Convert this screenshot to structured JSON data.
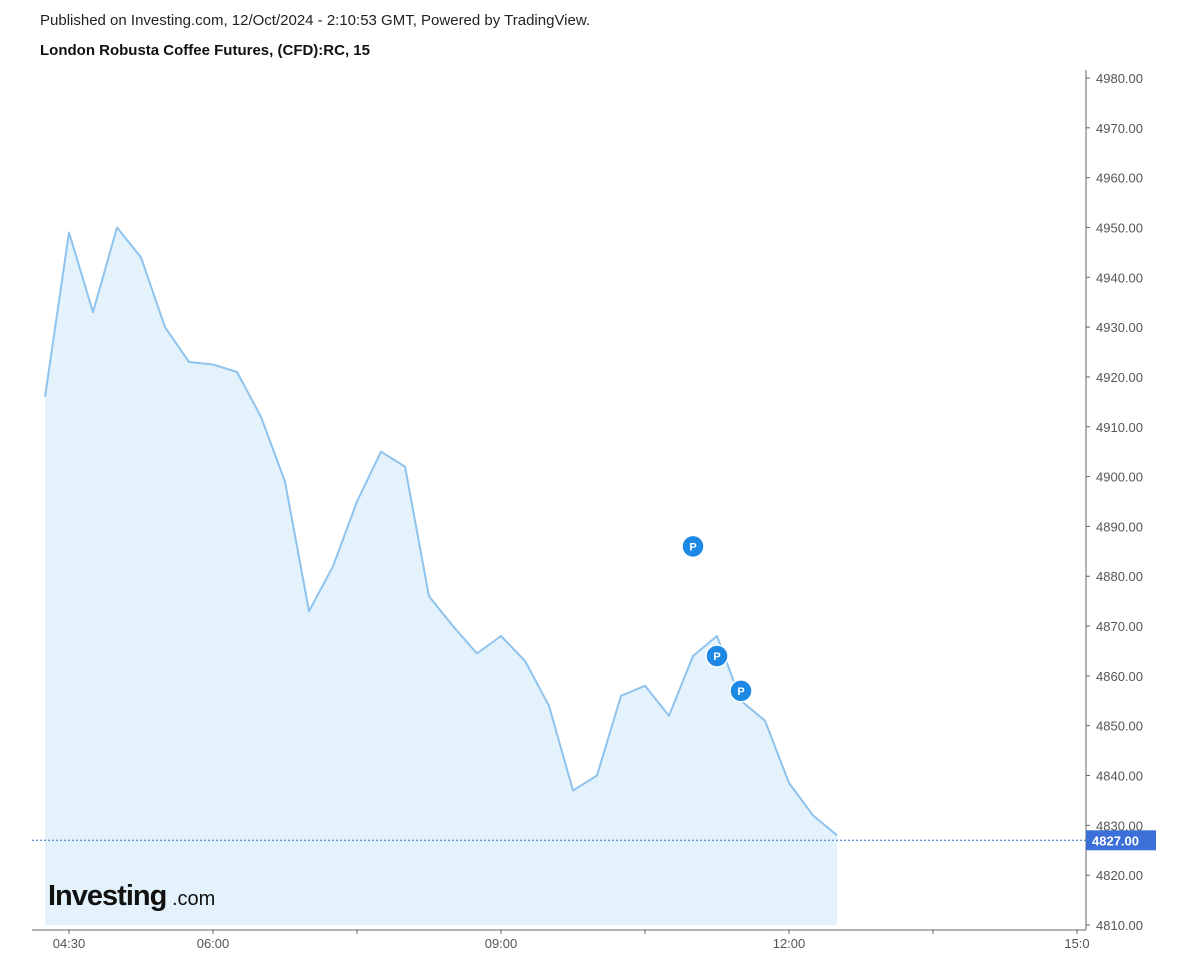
{
  "header": {
    "published": "Published on Investing.com, 12/Oct/2024 - 2:10:53 GMT, Powered by TradingView.",
    "symbol_title": "London Robusta Coffee Futures, (CFD):RC, 15"
  },
  "logo": {
    "brand": "Investing",
    "suffix": ".com"
  },
  "colors": {
    "line": "#8ec3ee",
    "fill": "#e3f2fb",
    "last_price_bg": "#3d6fd8",
    "marker": "#1e88e5",
    "axis": "#666666"
  },
  "chart_data": {
    "type": "area",
    "title": "London Robusta Coffee Futures, (CFD):RC, 15",
    "xlabel": "",
    "ylabel": "",
    "ylim": [
      4810,
      4980
    ],
    "xlim": [
      4.25,
      15.0
    ],
    "grid": false,
    "y_ticks": [
      "4980.00",
      "4970.00",
      "4960.00",
      "4950.00",
      "4940.00",
      "4930.00",
      "4920.00",
      "4910.00",
      "4900.00",
      "4890.00",
      "4880.00",
      "4870.00",
      "4860.00",
      "4850.00",
      "4840.00",
      "4830.00",
      "4820.00",
      "4810.00"
    ],
    "y_tick_values": [
      4980,
      4970,
      4960,
      4950,
      4940,
      4930,
      4920,
      4910,
      4900,
      4890,
      4880,
      4870,
      4860,
      4850,
      4840,
      4830,
      4820,
      4810
    ],
    "x_ticks": [
      {
        "label": "04:30",
        "value": 4.5
      },
      {
        "label": "06:00",
        "value": 6.0
      },
      {
        "label": "",
        "value": 7.5
      },
      {
        "label": "09:00",
        "value": 9.0
      },
      {
        "label": "",
        "value": 10.5
      },
      {
        "label": "12:00",
        "value": 12.0
      },
      {
        "label": "",
        "value": 13.5
      },
      {
        "label": "15:0",
        "value": 15.0
      }
    ],
    "series": [
      {
        "x": [
          4.25,
          4.5,
          4.75,
          5.0,
          5.25,
          5.5,
          5.75,
          6.0,
          6.25,
          6.5,
          6.75,
          7.0,
          7.25,
          7.5,
          7.75,
          8.0,
          8.25,
          8.5,
          8.75,
          9.0,
          9.25,
          9.5,
          9.75,
          10.0,
          10.25,
          10.5,
          10.75,
          11.0,
          11.25,
          11.5,
          11.75,
          12.0,
          12.25,
          12.5
        ],
        "values": [
          4916,
          4949,
          4933,
          4950,
          4944,
          4930,
          4923,
          4922.5,
          4921,
          4912,
          4899,
          4873,
          4882,
          4895,
          4905,
          4902,
          4876,
          4870,
          4864.5,
          4868,
          4863,
          4854,
          4837,
          4840,
          4856,
          4858,
          4852,
          4864,
          4868,
          4855,
          4851,
          4838.5,
          4832,
          4828
        ]
      }
    ],
    "last_price": {
      "value": 4827,
      "label": "4827.00"
    },
    "markers": [
      {
        "label": "P",
        "x": 11.0,
        "y": 4886
      },
      {
        "label": "P",
        "x": 11.25,
        "y": 4864
      },
      {
        "label": "P",
        "x": 11.5,
        "y": 4857
      }
    ]
  }
}
